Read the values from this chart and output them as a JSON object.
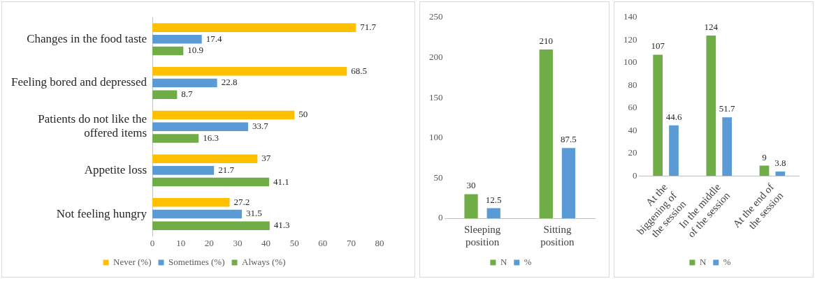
{
  "chart_data": [
    {
      "type": "bar",
      "orientation": "horizontal",
      "categories": [
        "Changes in the food taste",
        "Feeling bored and depressed",
        "Patients do not like the offered items",
        "Appetite loss",
        "Not feeling hungry"
      ],
      "series": [
        {
          "name": "Never (%)",
          "color": "#ffc000",
          "values": [
            71.7,
            68.5,
            50,
            37,
            27.2
          ]
        },
        {
          "name": "Sometimes (%)",
          "color": "#5b9bd5",
          "values": [
            17.4,
            22.8,
            33.7,
            21.7,
            31.5
          ]
        },
        {
          "name": "Always (%)",
          "color": "#70ad47",
          "values": [
            10.9,
            8.7,
            16.3,
            41.1,
            41.3
          ]
        }
      ],
      "xlim": [
        0,
        80
      ],
      "xticks": [
        0,
        10,
        20,
        30,
        40,
        50,
        60,
        70,
        80
      ],
      "data_labels": true,
      "legend": "bottom"
    },
    {
      "type": "bar",
      "categories": [
        "Sleeping position",
        "Sitting position"
      ],
      "series": [
        {
          "name": "N",
          "color": "#70ad47",
          "values": [
            30,
            210
          ]
        },
        {
          "name": "%",
          "color": "#5b9bd5",
          "values": [
            12.5,
            87.5
          ]
        }
      ],
      "ylim": [
        0,
        250
      ],
      "yticks": [
        0,
        50,
        100,
        150,
        200,
        250
      ],
      "data_labels": true,
      "legend": "bottom"
    },
    {
      "type": "bar",
      "categories": [
        "At the biggening of the session",
        "In the middle of the session",
        "At the end of the session"
      ],
      "series": [
        {
          "name": "N",
          "color": "#70ad47",
          "values": [
            107,
            124,
            9
          ]
        },
        {
          "name": "%",
          "color": "#5b9bd5",
          "values": [
            44.6,
            51.7,
            3.8
          ]
        }
      ],
      "ylim": [
        0,
        140
      ],
      "yticks": [
        0,
        20,
        40,
        60,
        80,
        100,
        120,
        140
      ],
      "data_labels": true,
      "legend": "bottom"
    }
  ]
}
